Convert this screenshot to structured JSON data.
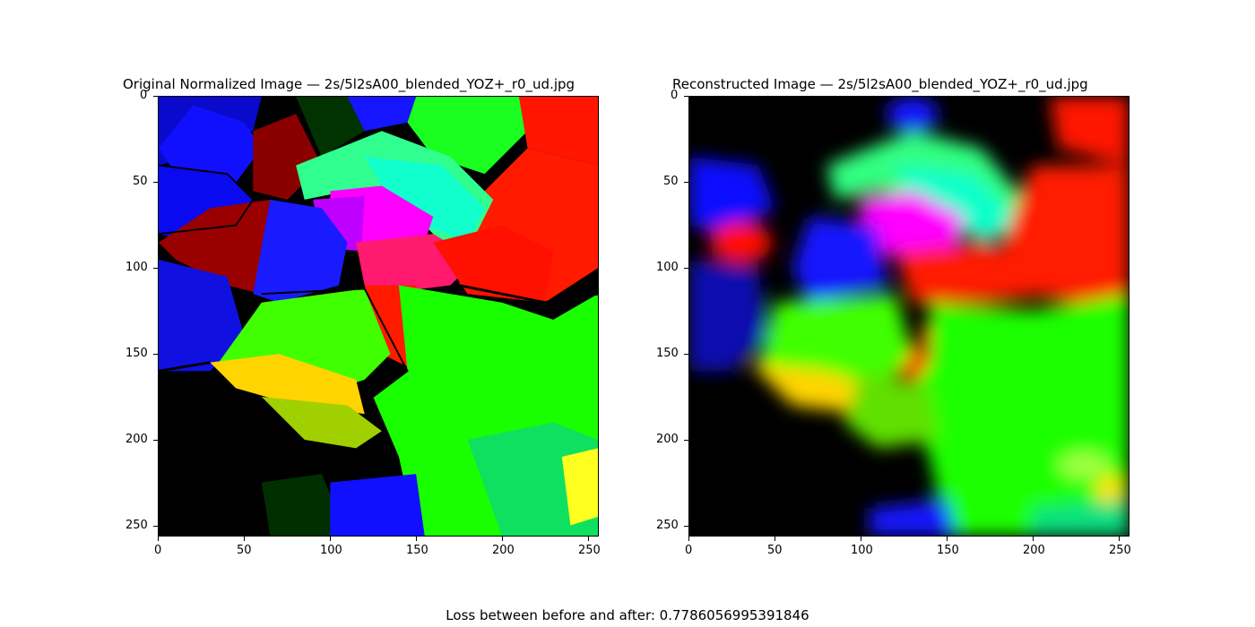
{
  "chart_data": [
    {
      "type": "image",
      "title": "Original Normalized Image  —  2s/5l2sA00_blended_YOZ+_r0_ud.jpg",
      "xlim": [
        0,
        256
      ],
      "ylim": [
        256,
        0
      ],
      "x_ticks": [
        "0",
        "50",
        "100",
        "150",
        "200",
        "250"
      ],
      "y_ticks": [
        "0",
        "50",
        "100",
        "150",
        "200",
        "250"
      ]
    },
    {
      "type": "image",
      "title": "Reconstructed Image  —  2s/5l2sA00_blended_YOZ+_r0_ud.jpg",
      "xlim": [
        0,
        256
      ],
      "ylim": [
        256,
        0
      ],
      "x_ticks": [
        "0",
        "50",
        "100",
        "150",
        "200",
        "250"
      ],
      "y_ticks": [
        "0",
        "50",
        "100",
        "150",
        "200",
        "250"
      ]
    }
  ],
  "caption": "Loss between before and after: 0.7786056995391846",
  "colors": {
    "red": "#ff1a00",
    "green": "#1aff00",
    "blue": "#1a10ff",
    "cyan": "#10ffcc",
    "magenta": "#ff00ff",
    "yellow": "#ffd400",
    "black": "#000000"
  }
}
